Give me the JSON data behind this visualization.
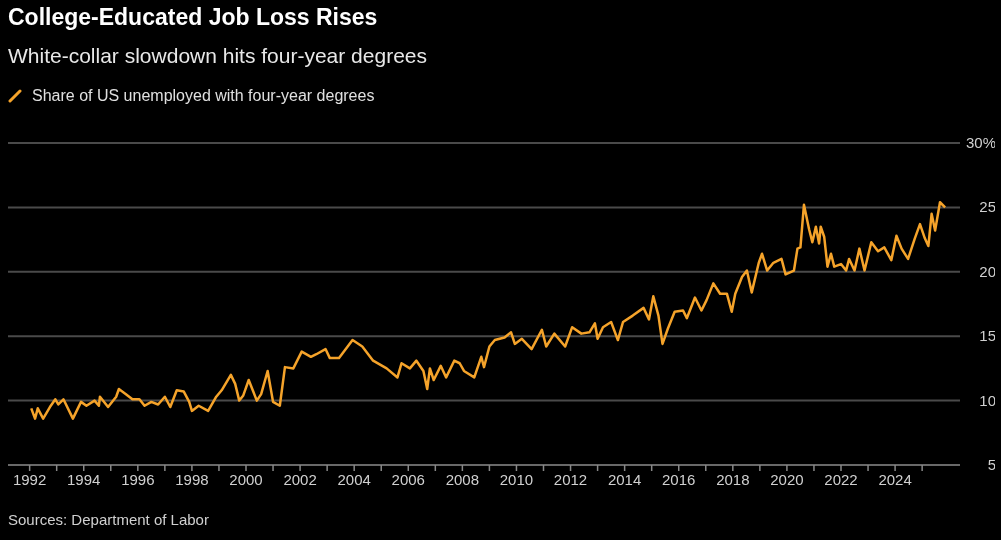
{
  "chart_data": {
    "type": "line",
    "title": "College-Educated Job Loss Rises",
    "subtitle": "White-collar slowdown hits four-year degrees",
    "annotations": [
      "Sources: Department of Labor"
    ],
    "legend": "top left",
    "grid": "y",
    "xlim": [
      1991.2,
      2026.4
    ],
    "xticks": [
      1992,
      {
        "value": 1993,
        "label": null
      },
      1994,
      {
        "value": 1995,
        "label": null
      },
      1996,
      {
        "value": 1997,
        "label": null
      },
      1998,
      {
        "value": 1999,
        "label": null
      },
      2000,
      {
        "value": 2001,
        "label": null
      },
      2002,
      {
        "value": 2003,
        "label": null
      },
      2004,
      {
        "value": 2005,
        "label": null
      },
      2006,
      {
        "value": 2007,
        "label": null
      },
      2008,
      {
        "value": 2009,
        "label": null
      },
      2010,
      {
        "value": 2011,
        "label": null
      },
      2012,
      {
        "value": 2013,
        "label": null
      },
      2014,
      {
        "value": 2015,
        "label": null
      },
      2016,
      {
        "value": 2017,
        "label": null
      },
      2018,
      {
        "value": 2019,
        "label": null
      },
      2020,
      {
        "value": 2021,
        "label": null
      },
      2022,
      {
        "value": 2023,
        "label": null
      },
      2024,
      {
        "value": 2025,
        "label": null
      }
    ],
    "ylim": [
      5,
      30
    ],
    "yticks": [
      5,
      10,
      15,
      20,
      25,
      {
        "value": 30,
        "label": "30%"
      }
    ],
    "x": [
      1992.06,
      1992.2,
      1992.3,
      1992.5,
      1992.75,
      1992.95,
      1993.06,
      1993.25,
      1993.6,
      1993.9,
      1994.1,
      1994.4,
      1994.56,
      1994.6,
      1994.9,
      1995.2,
      1995.3,
      1995.56,
      1995.8,
      1996.06,
      1996.25,
      1996.5,
      1996.75,
      1997.0,
      1997.2,
      1997.44,
      1997.7,
      1997.9,
      1998.0,
      1998.25,
      1998.6,
      1998.9,
      1999.1,
      1999.44,
      1999.6,
      1999.75,
      1999.9,
      2000.1,
      2000.4,
      2000.56,
      2000.8,
      2001.0,
      2001.25,
      2001.44,
      2001.75,
      2002.06,
      2002.4,
      2002.6,
      2002.94,
      2003.1,
      2003.44,
      2003.94,
      2004.3,
      2004.7,
      2005.2,
      2005.6,
      2005.75,
      2006.06,
      2006.3,
      2006.56,
      2006.7,
      2006.8,
      2006.94,
      2007.2,
      2007.4,
      2007.7,
      2007.9,
      2008.06,
      2008.44,
      2008.7,
      2008.8,
      2009.0,
      2009.2,
      2009.56,
      2009.8,
      2009.94,
      2010.2,
      2010.56,
      2010.94,
      2011.1,
      2011.4,
      2011.8,
      2012.06,
      2012.4,
      2012.7,
      2012.9,
      2013.0,
      2013.2,
      2013.5,
      2013.75,
      2013.94,
      2014.3,
      2014.7,
      2014.9,
      2015.06,
      2015.25,
      2015.4,
      2015.6,
      2015.85,
      2016.16,
      2016.3,
      2016.6,
      2016.84,
      2017.03,
      2017.28,
      2017.53,
      2017.78,
      2017.96,
      2018.09,
      2018.34,
      2018.52,
      2018.7,
      2018.96,
      2019.08,
      2019.27,
      2019.5,
      2019.8,
      2019.95,
      2020.26,
      2020.39,
      2020.5,
      2020.63,
      2020.82,
      2020.94,
      2021.07,
      2021.19,
      2021.25,
      2021.38,
      2021.5,
      2021.63,
      2021.75,
      2022.0,
      2022.19,
      2022.3,
      2022.5,
      2022.68,
      2022.87,
      2023.12,
      2023.37,
      2023.6,
      2023.86,
      2024.05,
      2024.24,
      2024.48,
      2024.73,
      2024.92,
      2025.1,
      2025.23,
      2025.35,
      2025.48,
      2025.66,
      2025.85
    ],
    "series": [
      {
        "name": "Share of US unemployed with four-year degrees",
        "color": "#f5a32a",
        "values": [
          9.4,
          8.6,
          9.4,
          8.6,
          9.5,
          10.1,
          9.7,
          10.1,
          8.6,
          9.9,
          9.6,
          10.0,
          9.6,
          10.3,
          9.5,
          10.3,
          10.9,
          10.5,
          10.1,
          10.1,
          9.6,
          9.9,
          9.7,
          10.3,
          9.5,
          10.8,
          10.7,
          9.9,
          9.2,
          9.6,
          9.2,
          10.3,
          10.8,
          12.0,
          11.3,
          10.0,
          10.4,
          11.6,
          10.0,
          10.5,
          12.3,
          9.9,
          9.6,
          12.6,
          12.5,
          13.8,
          13.4,
          13.6,
          14.0,
          13.3,
          13.3,
          14.7,
          14.2,
          13.1,
          12.5,
          11.8,
          12.9,
          12.5,
          13.1,
          12.3,
          10.9,
          12.5,
          11.6,
          12.7,
          11.8,
          13.1,
          12.9,
          12.3,
          11.8,
          13.4,
          12.6,
          14.2,
          14.7,
          14.9,
          15.3,
          14.4,
          14.8,
          14.0,
          15.5,
          14.2,
          15.2,
          14.2,
          15.7,
          15.2,
          15.3,
          16.0,
          14.8,
          15.7,
          16.1,
          14.7,
          16.1,
          16.6,
          17.2,
          16.3,
          18.1,
          16.6,
          14.4,
          15.6,
          16.9,
          17.0,
          16.4,
          18.0,
          17.0,
          17.8,
          19.1,
          18.3,
          18.3,
          16.9,
          18.3,
          19.6,
          20.1,
          18.4,
          20.7,
          21.4,
          20.1,
          20.7,
          21.0,
          19.8,
          20.1,
          21.8,
          21.9,
          25.2,
          23.3,
          22.3,
          23.5,
          22.2,
          23.5,
          22.7,
          20.4,
          21.4,
          20.4,
          20.6,
          20.1,
          21.0,
          20.1,
          21.8,
          20.1,
          22.3,
          21.6,
          21.9,
          20.9,
          22.8,
          21.8,
          21.0,
          22.6,
          23.7,
          22.6,
          22.0,
          24.5,
          23.2,
          25.4,
          25.0
        ]
      }
    ]
  }
}
